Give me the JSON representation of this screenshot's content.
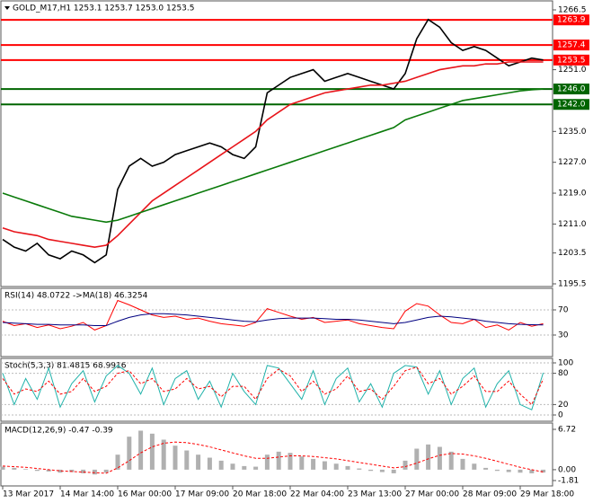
{
  "chart_data": [
    {
      "type": "line",
      "title": "GOLD_M17,H1  1253.1 1253.7 1253.0 1253.5",
      "categories": [
        "13 Mar 2017",
        null,
        null,
        null,
        null,
        "14 Mar 14:00",
        null,
        null,
        null,
        null,
        "16 Mar 00:00",
        null,
        null,
        null,
        null,
        "17 Mar 09:00",
        null,
        null,
        null,
        null,
        "20 Mar 18:00",
        null,
        null,
        null,
        null,
        "22 Mar 04:00",
        null,
        null,
        null,
        null,
        "23 Mar 13:00",
        null,
        null,
        null,
        null,
        "27 Mar 00:00",
        null,
        null,
        null,
        null,
        "28 Mar 09:00",
        null,
        null,
        null,
        null,
        "29 Mar 18:00",
        null,
        null
      ],
      "ylim": [
        1195.5,
        1266.5
      ],
      "yticks": [
        1266.5,
        {
          "value": 1251,
          "label": "1251.0"
        },
        {
          "value": 1235,
          "label": "1235.0"
        },
        {
          "value": 1227,
          "label": "1227.0"
        },
        {
          "value": 1219,
          "label": "1219.0"
        },
        {
          "value": 1211,
          "label": "1211.0"
        },
        1203.5,
        1195.5
      ],
      "levels": [
        {
          "value": 1263.9,
          "label": "1263.9",
          "color": "#ff0000"
        },
        {
          "value": 1257.4,
          "label": "1257.4",
          "color": "#ff0000"
        },
        {
          "value": 1253.5,
          "label": "1253.5",
          "color": "#ff0000"
        },
        {
          "value": 1246,
          "label": "1246.0",
          "color": "#006400"
        },
        {
          "value": 1242,
          "label": "1242.0",
          "color": "#006400"
        }
      ],
      "series": [
        {
          "color": "#000000",
          "values": [
            1207,
            1205,
            1204,
            1206,
            1203,
            1202,
            1204,
            1203,
            1201,
            1203,
            1220,
            1226,
            1228,
            1226,
            1227,
            1229,
            1230,
            1231,
            1232,
            1231,
            1229,
            1228,
            1231,
            1245,
            1247,
            1249,
            1250,
            1251,
            1248,
            1249,
            1250,
            1249,
            1248,
            1247,
            1246,
            1250,
            1259,
            1264,
            1262,
            1258,
            1256,
            1257,
            1256,
            1254,
            1252,
            1253,
            1254,
            1253.5
          ]
        },
        {
          "color": "#e8141a",
          "values": [
            1210,
            1209,
            1208.5,
            1208,
            1207,
            1206.5,
            1206,
            1205.5,
            1205,
            1205.5,
            1208,
            1211,
            1214,
            1217,
            1219,
            1221,
            1223,
            1225,
            1227,
            1229,
            1231,
            1233,
            1235,
            1238,
            1240,
            1242,
            1243,
            1244,
            1245,
            1245.5,
            1246,
            1246.5,
            1247,
            1247,
            1247.5,
            1248,
            1249,
            1250,
            1251,
            1251.5,
            1252,
            1252,
            1252.5,
            1252.5,
            1253,
            1253,
            1253,
            1253
          ]
        },
        {
          "color": "#0a7a0a",
          "values": [
            1219,
            1218,
            1217,
            1216,
            1215,
            1214,
            1213,
            1212.5,
            1212,
            1211.5,
            1212,
            1213,
            1214,
            1215,
            1216,
            1217,
            1218,
            1219,
            1220,
            1221,
            1222,
            1223,
            1224,
            1225,
            1226,
            1227,
            1228,
            1229,
            1230,
            1231,
            1232,
            1233,
            1234,
            1235,
            1236,
            1238,
            1239,
            1240,
            1241,
            1242,
            1243,
            1243.5,
            1244,
            1244.5,
            1245,
            1245.5,
            1245.8,
            1246
          ]
        }
      ]
    },
    {
      "type": "line",
      "title": "RSI(14) 48.0722 ->MA(18) 46.3254",
      "ylim": [
        0,
        100
      ],
      "yticks": [
        70,
        30
      ],
      "series": [
        {
          "color": "#ff0000",
          "values": [
            52,
            45,
            48,
            42,
            46,
            40,
            44,
            50,
            38,
            45,
            85,
            78,
            70,
            62,
            58,
            60,
            55,
            57,
            52,
            48,
            46,
            44,
            50,
            72,
            66,
            60,
            55,
            58,
            50,
            52,
            54,
            48,
            45,
            42,
            40,
            68,
            80,
            76,
            62,
            50,
            48,
            55,
            42,
            46,
            38,
            50,
            44,
            48
          ]
        },
        {
          "color": "#000080",
          "values": [
            50,
            49,
            48,
            47,
            47,
            46,
            46,
            46,
            45,
            45,
            52,
            58,
            62,
            64,
            64,
            63,
            62,
            60,
            58,
            56,
            54,
            52,
            51,
            54,
            56,
            57,
            57,
            57,
            56,
            55,
            55,
            54,
            52,
            50,
            48,
            50,
            54,
            58,
            60,
            59,
            57,
            55,
            52,
            50,
            48,
            47,
            46.5,
            46
          ]
        }
      ]
    },
    {
      "type": "line",
      "title": "Stoch(5,3,3) 81.4815 68.9916",
      "ylim": [
        0,
        100
      ],
      "yticks": [
        100,
        80,
        20,
        0
      ],
      "series": [
        {
          "color": "#20b2aa",
          "values": [
            80,
            20,
            70,
            30,
            90,
            15,
            60,
            85,
            25,
            75,
            95,
            80,
            40,
            90,
            20,
            70,
            85,
            30,
            65,
            15,
            80,
            45,
            20,
            95,
            90,
            60,
            30,
            85,
            20,
            70,
            90,
            25,
            60,
            15,
            80,
            95,
            92,
            40,
            85,
            20,
            70,
            90,
            15,
            60,
            85,
            20,
            10,
            81
          ]
        },
        {
          "color": "#ff0000",
          "dashed": true,
          "values": [
            70,
            40,
            50,
            45,
            65,
            40,
            45,
            70,
            45,
            55,
            80,
            85,
            60,
            70,
            45,
            50,
            70,
            50,
            55,
            35,
            55,
            55,
            30,
            70,
            88,
            75,
            45,
            65,
            40,
            50,
            75,
            45,
            50,
            30,
            55,
            85,
            92,
            60,
            70,
            40,
            55,
            75,
            45,
            45,
            65,
            40,
            20,
            69
          ]
        }
      ]
    },
    {
      "type": "bar",
      "title": "MACD(12,26,9) -0.47 -0.39",
      "ylim": [
        -1.81,
        6.72
      ],
      "yticks": [
        6.72,
        {
          "value": 0,
          "label": "0.00"
        },
        -1.81
      ],
      "series": [
        {
          "color": "#b0b0b0",
          "values": [
            0.5,
            0.3,
            0.1,
            -0.2,
            -0.3,
            -0.5,
            -0.4,
            -0.6,
            -0.8,
            -0.5,
            2.5,
            5.5,
            6.5,
            6.0,
            5.0,
            4.0,
            3.2,
            2.5,
            2.0,
            1.5,
            1.0,
            0.6,
            0.5,
            2.5,
            3.0,
            2.8,
            2.2,
            1.8,
            1.4,
            1.0,
            0.6,
            0.2,
            -0.2,
            -0.4,
            -0.6,
            1.5,
            3.5,
            4.2,
            3.8,
            3.0,
            1.8,
            1.0,
            0.3,
            -0.2,
            -0.4,
            -0.5,
            -0.6,
            -0.47
          ]
        },
        {
          "color": "#ff0000",
          "type": "line",
          "dashed": true,
          "values": [
            0.6,
            0.5,
            0.4,
            0.2,
            0.0,
            -0.2,
            -0.3,
            -0.4,
            -0.5,
            -0.6,
            0.3,
            1.5,
            2.8,
            3.8,
            4.4,
            4.6,
            4.5,
            4.2,
            3.8,
            3.3,
            2.8,
            2.3,
            1.9,
            1.9,
            2.1,
            2.3,
            2.3,
            2.2,
            2.0,
            1.8,
            1.5,
            1.2,
            0.9,
            0.6,
            0.3,
            0.5,
            1.1,
            1.8,
            2.4,
            2.7,
            2.6,
            2.3,
            1.9,
            1.4,
            0.9,
            0.4,
            0.0,
            -0.39
          ]
        }
      ]
    }
  ]
}
